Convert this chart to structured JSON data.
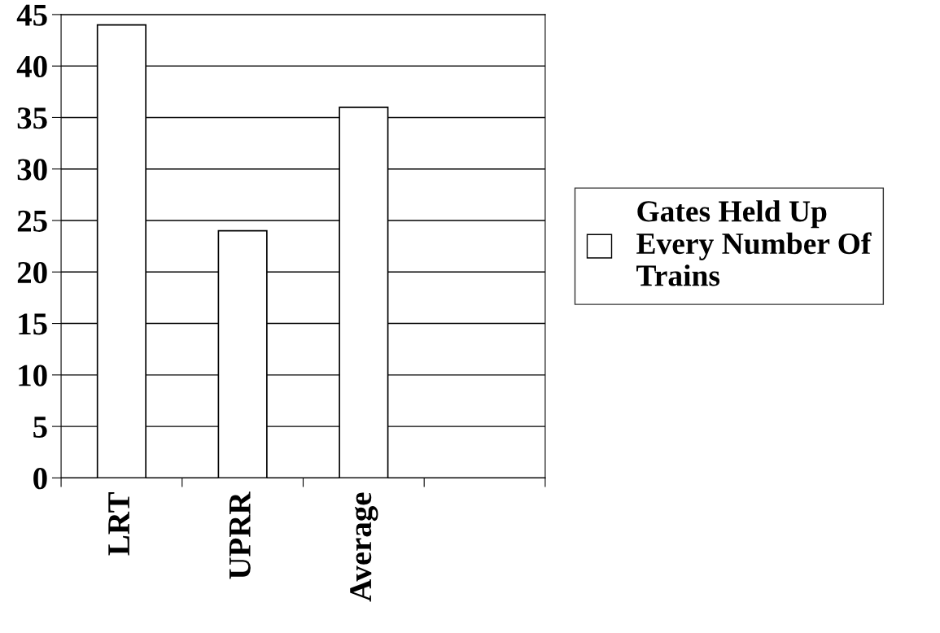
{
  "chart_data": {
    "type": "bar",
    "categories": [
      "LRT",
      "UPRR",
      "Average",
      null
    ],
    "series": [
      {
        "name": "Gates Held Up Every Number Of Trains",
        "color": "#ffffff",
        "values": [
          44,
          24,
          36,
          null
        ]
      }
    ],
    "ylim": [
      0,
      45
    ],
    "yticks": [
      0,
      5,
      10,
      15,
      20,
      25,
      30,
      35,
      40,
      45
    ],
    "grid": "y",
    "legend": "right"
  }
}
